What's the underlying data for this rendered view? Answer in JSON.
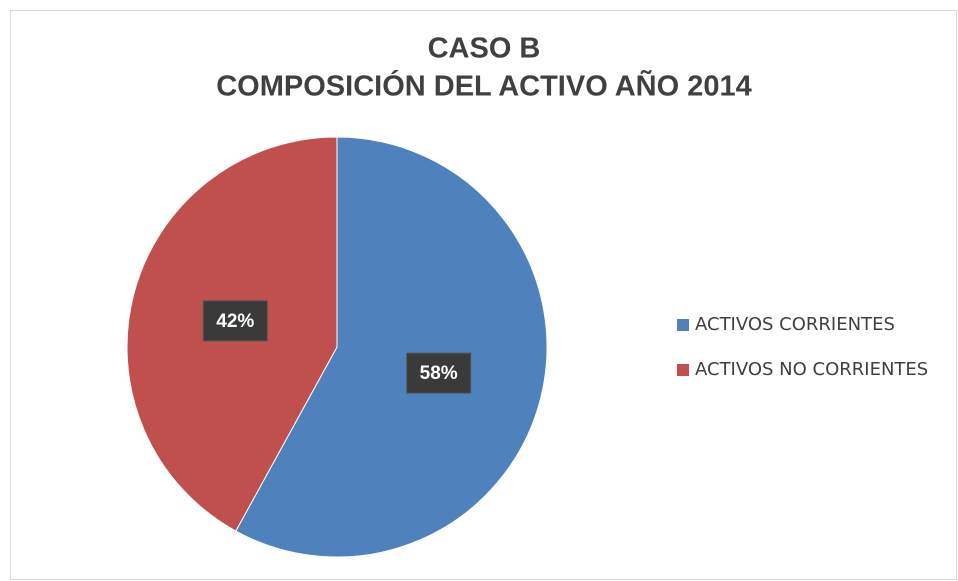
{
  "chart_data": {
    "type": "pie",
    "title": [
      "CASO B",
      "COMPOSICIÓN DEL ACTIVO AÑO 2014"
    ],
    "categories": [
      "ACTIVOS CORRIENTES",
      "ACTIVOS NO CORRIENTES"
    ],
    "values": [
      58,
      42
    ],
    "value_labels": [
      "58%",
      "42%"
    ],
    "colors": [
      "#4f81bd",
      "#c0504d"
    ],
    "legend": "right"
  }
}
